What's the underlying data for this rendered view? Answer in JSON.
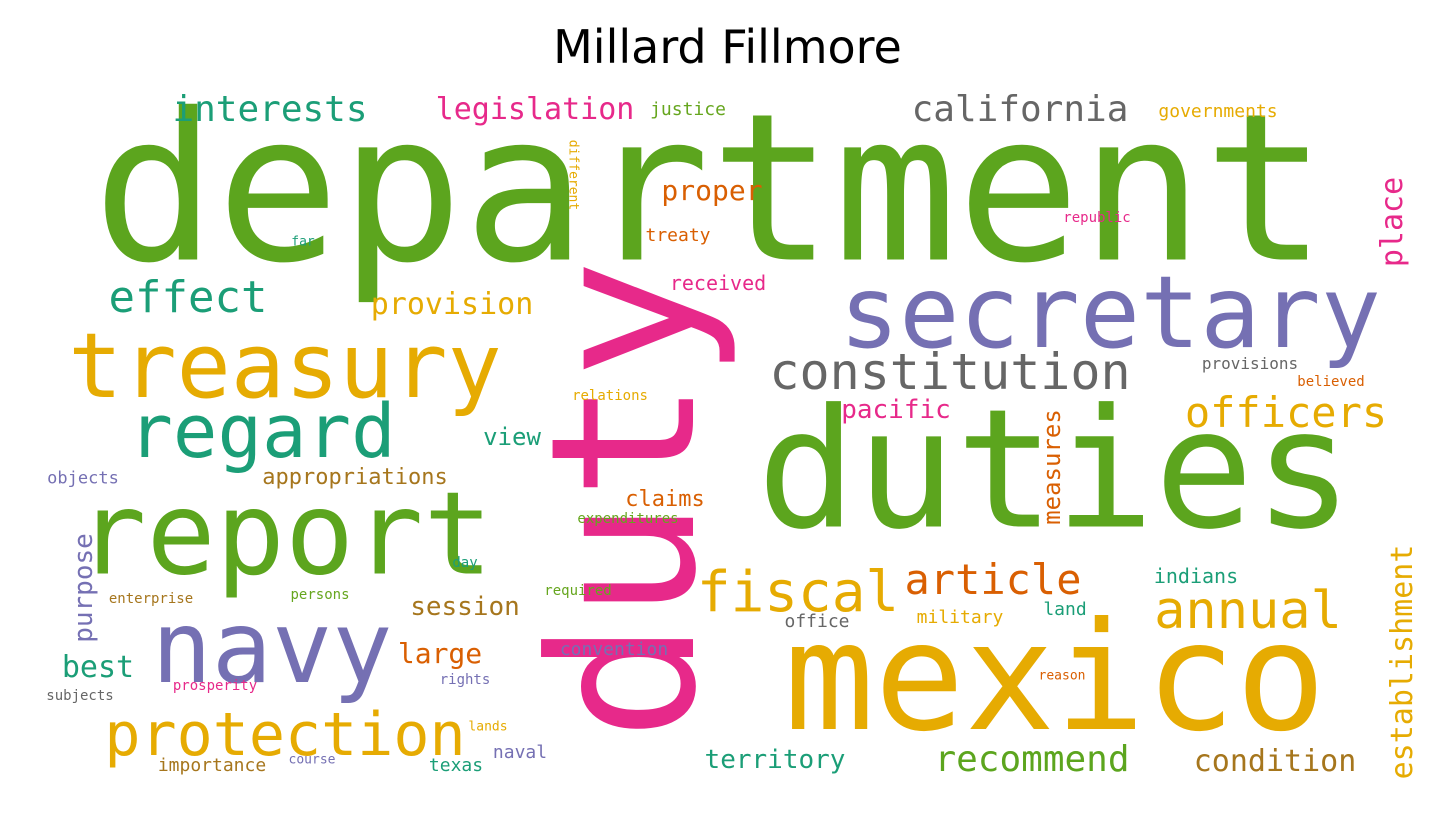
{
  "title": "Millard Fillmore",
  "words": [
    {
      "text": "department",
      "color": "#5ca51e"
    },
    {
      "text": "duty",
      "color": "#e7298a"
    },
    {
      "text": "duties",
      "color": "#5ca51e"
    },
    {
      "text": "mexico",
      "color": "#e6ab02"
    },
    {
      "text": "secretary",
      "color": "#7570b3"
    },
    {
      "text": "report",
      "color": "#5ca51e"
    },
    {
      "text": "treasury",
      "color": "#e6ab02"
    },
    {
      "text": "navy",
      "color": "#7570b3"
    },
    {
      "text": "regard",
      "color": "#1b9e77"
    },
    {
      "text": "protection",
      "color": "#e6ab02"
    },
    {
      "text": "constitution",
      "color": "#666666"
    },
    {
      "text": "fiscal",
      "color": "#e6ab02"
    },
    {
      "text": "article",
      "color": "#d95f02"
    },
    {
      "text": "officers",
      "color": "#e6ab02"
    },
    {
      "text": "annual",
      "color": "#e6ab02"
    },
    {
      "text": "california",
      "color": "#666666"
    },
    {
      "text": "interests",
      "color": "#1b9e77"
    },
    {
      "text": "effect",
      "color": "#1b9e77"
    },
    {
      "text": "recommend",
      "color": "#5ca51e"
    },
    {
      "text": "condition",
      "color": "#a6761d"
    },
    {
      "text": "legislation",
      "color": "#e7298a"
    },
    {
      "text": "provision",
      "color": "#e6ab02"
    },
    {
      "text": "proper",
      "color": "#d95f02"
    },
    {
      "text": "best",
      "color": "#1b9e77"
    },
    {
      "text": "large",
      "color": "#d95f02"
    },
    {
      "text": "session",
      "color": "#a6761d"
    },
    {
      "text": "territory",
      "color": "#1b9e77"
    },
    {
      "text": "pacific",
      "color": "#e7298a"
    },
    {
      "text": "establishment",
      "color": "#e6ab02"
    },
    {
      "text": "place",
      "color": "#e7298a"
    },
    {
      "text": "measures",
      "color": "#d95f02"
    },
    {
      "text": "purpose",
      "color": "#7570b3"
    },
    {
      "text": "appropriations",
      "color": "#a6761d"
    },
    {
      "text": "view",
      "color": "#1b9e77"
    },
    {
      "text": "claims",
      "color": "#d95f02"
    },
    {
      "text": "indians",
      "color": "#1b9e77"
    },
    {
      "text": "received",
      "color": "#e7298a"
    },
    {
      "text": "treaty",
      "color": "#d95f02"
    },
    {
      "text": "justice",
      "color": "#66a61e"
    },
    {
      "text": "governments",
      "color": "#e6ab02"
    },
    {
      "text": "convention",
      "color": "#7570b3"
    },
    {
      "text": "office",
      "color": "#666666"
    },
    {
      "text": "military",
      "color": "#e6ab02"
    },
    {
      "text": "land",
      "color": "#1b9e77"
    },
    {
      "text": "importance",
      "color": "#a6761d"
    },
    {
      "text": "texas",
      "color": "#1b9e77"
    },
    {
      "text": "naval",
      "color": "#7570b3"
    },
    {
      "text": "objects",
      "color": "#7570b3"
    },
    {
      "text": "provisions",
      "color": "#666666"
    },
    {
      "text": "expenditures",
      "color": "#66a61e"
    },
    {
      "text": "relations",
      "color": "#e6ab02"
    },
    {
      "text": "republic",
      "color": "#e7298a"
    },
    {
      "text": "believed",
      "color": "#d95f02"
    },
    {
      "text": "prosperity",
      "color": "#e7298a"
    },
    {
      "text": "rights",
      "color": "#7570b3"
    },
    {
      "text": "enterprise",
      "color": "#a6761d"
    },
    {
      "text": "persons",
      "color": "#66a61e"
    },
    {
      "text": "required",
      "color": "#66a61e"
    },
    {
      "text": "day",
      "color": "#1b9e77"
    },
    {
      "text": "subjects",
      "color": "#666666"
    },
    {
      "text": "course",
      "color": "#7570b3"
    },
    {
      "text": "lands",
      "color": "#e6ab02"
    },
    {
      "text": "reason",
      "color": "#d95f02"
    },
    {
      "text": "far",
      "color": "#1b9e77"
    },
    {
      "text": "different",
      "color": "#e6ab02"
    }
  ]
}
